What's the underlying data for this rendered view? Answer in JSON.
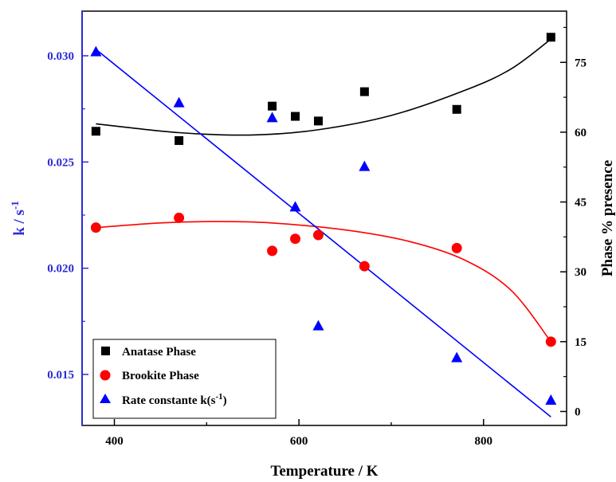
{
  "chart_data": {
    "type": "scatter",
    "xlabel": "Temperature / K",
    "ylabel_left": {
      "main": "k / s",
      "sup": "-1"
    },
    "ylabel_right": "Phase % presence",
    "xlim": [
      365,
      890
    ],
    "ylim_left": [
      0.0126,
      0.0321
    ],
    "ylim_right": [
      -3,
      86
    ],
    "x_ticks": [
      400,
      600,
      800
    ],
    "y_left_ticks": [
      0.015,
      0.02,
      0.025,
      0.03
    ],
    "y_left_tick_labels": [
      "0.015",
      "0.020",
      "0.025",
      "0.030"
    ],
    "y_right_ticks": [
      0,
      15,
      30,
      45,
      60,
      75
    ],
    "legend_position": "bottom-left",
    "series": [
      {
        "name": "Anatase Phase",
        "axis": "right",
        "marker": "square",
        "color": "#000000",
        "x": [
          380,
          470,
          571,
          596,
          621,
          671,
          771,
          873
        ],
        "y": [
          60.2,
          58.2,
          65.6,
          63.4,
          62.4,
          68.7,
          64.9,
          80.4
        ],
        "fit": [
          [
            380,
            61.8
          ],
          [
            470,
            59.9
          ],
          [
            550,
            59.4
          ],
          [
            620,
            60.5
          ],
          [
            700,
            63.6
          ],
          [
            780,
            69.0
          ],
          [
            830,
            73.6
          ],
          [
            873,
            80.0
          ]
        ]
      },
      {
        "name": "Brookite Phase",
        "axis": "right",
        "marker": "circle",
        "color": "#ff0000",
        "x": [
          380,
          470,
          571,
          596,
          621,
          671,
          771,
          873
        ],
        "y": [
          39.5,
          41.6,
          34.5,
          37.1,
          37.9,
          31.2,
          35.1,
          15.0
        ],
        "fit": [
          [
            380,
            39.5
          ],
          [
            450,
            40.5
          ],
          [
            510,
            40.8
          ],
          [
            570,
            40.5
          ],
          [
            650,
            39.0
          ],
          [
            720,
            36.5
          ],
          [
            780,
            32.5
          ],
          [
            830,
            26.0
          ],
          [
            873,
            15.0
          ]
        ]
      },
      {
        "name": "Rate constante k(s",
        "name_sup": "-1",
        "name_tail": ")",
        "axis": "left",
        "marker": "triangle",
        "color": "#0000ff",
        "x": [
          380,
          470,
          571,
          596,
          621,
          671,
          771,
          873
        ],
        "y": [
          0.0302,
          0.0278,
          0.0271,
          0.0229,
          0.0173,
          0.0248,
          0.0158,
          0.0138
        ],
        "fit": [
          [
            380,
            0.0303
          ],
          [
            873,
            0.013
          ]
        ]
      }
    ]
  },
  "colors": {
    "axis_left": "#2b2bd9",
    "axis_frame": "#000000"
  }
}
